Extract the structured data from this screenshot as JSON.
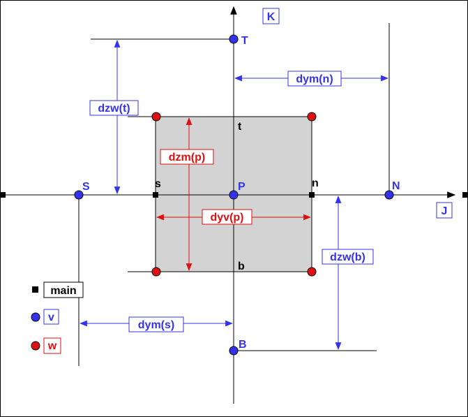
{
  "axes": {
    "horizontal": "J",
    "vertical": "K"
  },
  "nodes": {
    "center": "P",
    "top": "T",
    "bottom": "B",
    "south": "S",
    "north": "N"
  },
  "faces": {
    "top": "t",
    "bottom": "b",
    "south": "s",
    "north": "n"
  },
  "dimensions": {
    "dzw_t": "dzw(t)",
    "dym_n": "dym(n)",
    "dzm_p": "dzm(p)",
    "dyv_p": "dyv(p)",
    "dzw_b": "dzw(b)",
    "dym_s": "dym(s)"
  },
  "legend": {
    "main": "main",
    "v": "v",
    "w": "w"
  },
  "colors": {
    "blue": "#3333ee",
    "red": "#dd1111",
    "cell_fill": "#d3d3d3",
    "black": "#000000"
  }
}
